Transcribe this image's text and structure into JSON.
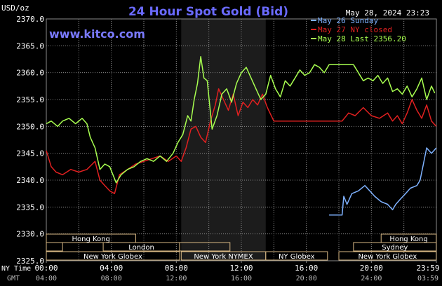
{
  "header": {
    "title": "24 Hour Spot Gold (Bid)",
    "unit_label": "USD/oz",
    "timestamp": "May 28, 2024 23:23",
    "site": "www.kitco.com"
  },
  "colors": {
    "background": "#000000",
    "title": "#6a6aff",
    "site": "#7a7aff",
    "text": "#ffffff",
    "grid": "#8a8a8a",
    "session_shade": "#1c1c1c",
    "market_bar": "#d8b884",
    "day1": "#7fb2ff",
    "day2": "#e02020",
    "day3": "#a8ff50"
  },
  "chart_data": {
    "type": "line",
    "x_unit": "hours of trading day (NY time)",
    "xlim": [
      0,
      24
    ],
    "ylim": [
      2325,
      2370
    ],
    "y_ticks": [
      "2370.0",
      "2365.0",
      "2360.0",
      "2355.0",
      "2350.0",
      "2345.0",
      "2340.0",
      "2335.0",
      "2330.0",
      "2325.0"
    ],
    "x_ticks_ny": [
      "00:00",
      "04:00",
      "08:00",
      "12:00",
      "16:00",
      "20:00",
      "23:59"
    ],
    "x_ticks_gmt": [
      "04:00",
      "08:00",
      "12:00",
      "16:00",
      "20:00",
      "24:00",
      "03:59"
    ],
    "x_row_labels": {
      "ny": "NY Time",
      "gmt": "GMT"
    },
    "legend": [
      "May 26 Sunday",
      "May 27 NY closed",
      "May 28 Last 2356.20"
    ],
    "session_shade_hours": [
      8.3,
      13.5
    ],
    "series": [
      {
        "name": "May 26 Sunday",
        "x": [
          17.4,
          18.2,
          18.3,
          18.5,
          18.8,
          19.2,
          19.6,
          19.9,
          20.2,
          20.6,
          21.0,
          21.3,
          21.5,
          21.8,
          22.1,
          22.4,
          22.8,
          23.0,
          23.2,
          23.4,
          23.7,
          23.99
        ],
        "y": [
          2333.5,
          2333.5,
          2337.0,
          2335.5,
          2337.5,
          2338.0,
          2339.0,
          2338.0,
          2337.0,
          2336.0,
          2335.5,
          2334.5,
          2335.5,
          2336.5,
          2337.5,
          2338.5,
          2339.0,
          2340.0,
          2343.0,
          2346.0,
          2345.0,
          2346.0
        ]
      },
      {
        "name": "May 27 NY closed",
        "x": [
          0.0,
          0.3,
          0.6,
          1.0,
          1.5,
          2.0,
          2.5,
          3.0,
          3.3,
          3.6,
          3.9,
          4.2,
          4.5,
          5.0,
          5.5,
          6.0,
          6.5,
          7.0,
          7.5,
          8.0,
          8.3,
          8.6,
          8.9,
          9.2,
          9.5,
          9.8,
          10.1,
          10.4,
          10.6,
          10.9,
          11.2,
          11.5,
          11.8,
          12.1,
          12.4,
          12.7,
          13.0,
          13.3,
          13.6,
          14.0,
          14.5,
          15.0,
          15.5,
          16.0,
          16.5,
          17.0,
          17.5,
          18.0,
          18.2,
          18.6,
          19.0,
          19.5,
          20.0,
          20.5,
          21.0,
          21.3,
          21.6,
          21.9,
          22.2,
          22.5,
          22.8,
          23.1,
          23.4,
          23.7,
          23.99
        ],
        "y": [
          2345.5,
          2342.5,
          2341.5,
          2341.0,
          2342.0,
          2341.5,
          2342.0,
          2343.5,
          2340.0,
          2339.0,
          2338.0,
          2337.5,
          2341.0,
          2342.0,
          2343.0,
          2343.5,
          2344.0,
          2344.5,
          2343.5,
          2344.5,
          2343.5,
          2346.0,
          2349.5,
          2350.0,
          2348.0,
          2347.0,
          2351.0,
          2354.0,
          2357.0,
          2355.0,
          2353.0,
          2356.0,
          2352.0,
          2354.5,
          2353.5,
          2355.0,
          2354.0,
          2356.0,
          2353.5,
          2351.0,
          2351.0,
          2351.0,
          2351.0,
          2351.0,
          2351.0,
          2351.0,
          2351.0,
          2351.0,
          2351.0,
          2352.5,
          2352.0,
          2353.5,
          2352.0,
          2351.5,
          2352.5,
          2351.0,
          2352.0,
          2350.5,
          2352.5,
          2355.0,
          2353.0,
          2351.5,
          2354.0,
          2351.0,
          2350.0
        ]
      },
      {
        "name": "May 28 Last 2356.20",
        "x": [
          0.0,
          0.3,
          0.7,
          1.0,
          1.4,
          1.8,
          2.2,
          2.5,
          2.7,
          3.0,
          3.3,
          3.6,
          3.9,
          4.1,
          4.3,
          4.6,
          5.0,
          5.4,
          5.8,
          6.2,
          6.6,
          7.0,
          7.4,
          7.8,
          8.1,
          8.4,
          8.7,
          8.9,
          9.1,
          9.3,
          9.5,
          9.7,
          9.9,
          10.2,
          10.5,
          10.8,
          11.1,
          11.4,
          11.7,
          12.0,
          12.3,
          12.6,
          12.9,
          13.2,
          13.5,
          13.8,
          14.1,
          14.4,
          14.7,
          15.0,
          15.3,
          15.6,
          15.9,
          16.2,
          16.5,
          16.8,
          17.1,
          17.4,
          17.7,
          18.0,
          18.3,
          18.6,
          18.9,
          19.2,
          19.5,
          19.8,
          20.1,
          20.4,
          20.7,
          21.0,
          21.3,
          21.6,
          21.9,
          22.2,
          22.5,
          22.8,
          23.1,
          23.4,
          23.7,
          23.9
        ],
        "y": [
          2350.5,
          2351.0,
          2350.0,
          2351.0,
          2351.5,
          2350.5,
          2351.5,
          2350.5,
          2348.0,
          2346.0,
          2342.0,
          2343.0,
          2342.5,
          2341.0,
          2339.5,
          2341.0,
          2342.0,
          2342.5,
          2343.5,
          2344.0,
          2343.5,
          2344.5,
          2343.5,
          2345.0,
          2347.0,
          2348.5,
          2352.0,
          2351.0,
          2355.0,
          2358.0,
          2363.0,
          2359.0,
          2358.5,
          2349.5,
          2352.0,
          2356.0,
          2357.0,
          2354.5,
          2358.0,
          2360.0,
          2361.0,
          2359.0,
          2357.0,
          2355.0,
          2356.0,
          2359.5,
          2357.0,
          2355.5,
          2358.5,
          2357.5,
          2359.0,
          2360.5,
          2359.5,
          2360.0,
          2361.5,
          2361.0,
          2360.0,
          2361.5,
          2361.5,
          2361.5,
          2361.5,
          2361.5,
          2361.5,
          2360.0,
          2358.5,
          2359.0,
          2358.5,
          2359.5,
          2358.0,
          2359.0,
          2356.5,
          2357.0,
          2356.0,
          2357.5,
          2355.5,
          2357.0,
          2359.0,
          2355.0,
          2357.5,
          2356.2
        ]
      }
    ],
    "market_sessions": [
      {
        "label": "Hong Kong",
        "row": 1,
        "start": 0.0,
        "end": 5.5
      },
      {
        "label": "",
        "row": 2,
        "start": 0.0,
        "end": 1.0
      },
      {
        "label": "London",
        "row": 2,
        "start": 3.5,
        "end": 8.2
      },
      {
        "label": "New York Globex",
        "row": 3,
        "start": 0.0,
        "end": 8.2
      },
      {
        "label": "",
        "row": 2,
        "start": 8.2,
        "end": 11.3
      },
      {
        "label": "New York NYMEX",
        "row": 3,
        "start": 8.3,
        "end": 13.5
      },
      {
        "label": "NY Globex",
        "row": 3,
        "start": 13.5,
        "end": 17.3
      },
      {
        "label": "Hong Kong",
        "row": 1,
        "start": 20.6,
        "end": 23.99
      },
      {
        "label": "Sydney",
        "row": 2,
        "start": 18.9,
        "end": 23.99
      },
      {
        "label": "New York Globex",
        "row": 3,
        "start": 18.0,
        "end": 23.99
      }
    ]
  }
}
